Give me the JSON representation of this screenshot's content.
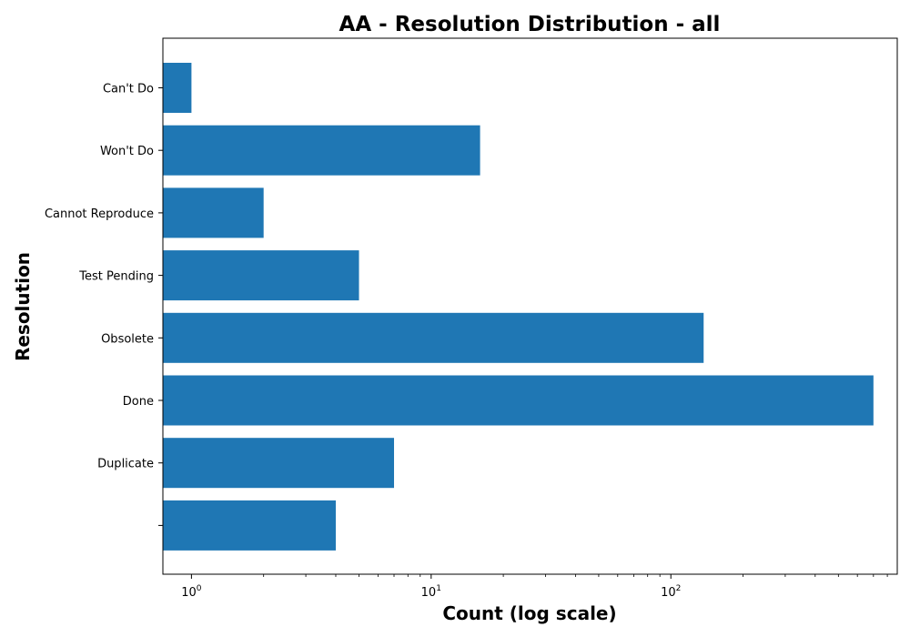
{
  "chart_data": {
    "type": "bar",
    "orientation": "horizontal",
    "title": "AA - Resolution Distribution - all",
    "xlabel": "Count (log scale)",
    "ylabel": "Resolution",
    "x_scale": "log",
    "xlim": [
      0.76,
      880
    ],
    "x_ticks": [
      1,
      10,
      100
    ],
    "x_tick_labels": [
      {
        "base": "10",
        "exp": "0"
      },
      {
        "base": "10",
        "exp": "1"
      },
      {
        "base": "10",
        "exp": "2"
      }
    ],
    "categories": [
      "Can't Do",
      "Won't Do",
      "Cannot Reproduce",
      "Test Pending",
      "Obsolete",
      "Done",
      "Duplicate",
      ""
    ],
    "values": [
      1,
      16,
      2,
      5,
      137,
      700,
      7,
      4
    ],
    "bar_color": "#1f77b4",
    "grid": false,
    "legend": "none"
  }
}
